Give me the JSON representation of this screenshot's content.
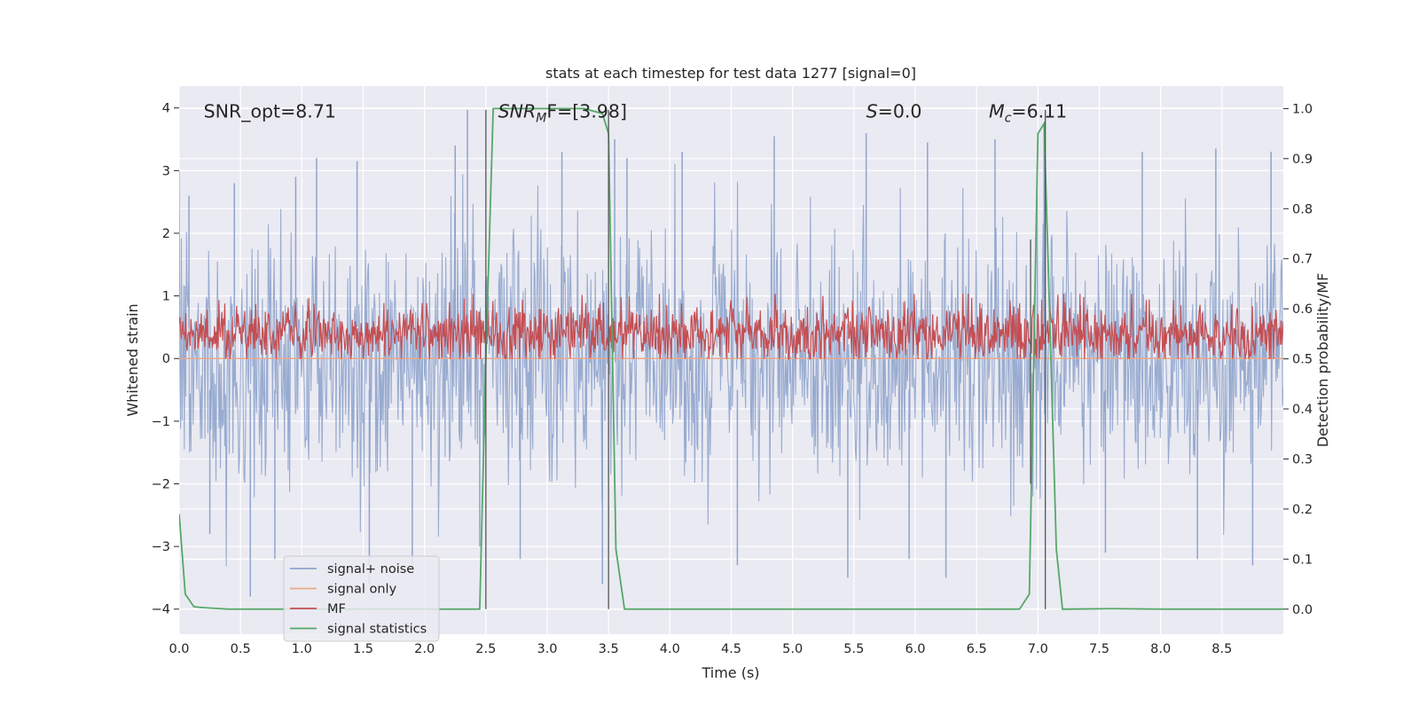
{
  "chart_data": {
    "type": "line",
    "title": "stats at each timestep for test data 1277 [signal=0]",
    "xlabel": "Time (s)",
    "ylabel": "Whitened strain",
    "ylabel_right": "Detection probability/MF",
    "xlim": [
      0.0,
      9.0
    ],
    "ylim": [
      -4.4,
      4.35
    ],
    "ylim_right": [
      -0.05,
      1.045
    ],
    "xticks": [
      "0.0",
      "0.5",
      "1.0",
      "1.5",
      "2.0",
      "2.5",
      "3.0",
      "3.5",
      "4.0",
      "4.5",
      "5.0",
      "5.5",
      "6.0",
      "6.5",
      "7.0",
      "7.5",
      "8.0",
      "8.5"
    ],
    "yticks": [
      "4",
      "3",
      "2",
      "1",
      "0",
      "−1",
      "−2",
      "−3",
      "−4"
    ],
    "yticks_right": [
      "1.0",
      "0.9",
      "0.8",
      "0.7",
      "0.6",
      "0.5",
      "0.4",
      "0.3",
      "0.2",
      "0.1",
      "0.0"
    ],
    "annotations": [
      {
        "name": "snr-opt",
        "text": "SNR_opt=8.71",
        "x": 0.2,
        "y": 3.95
      },
      {
        "name": "snr-mf",
        "text": "SNR_MF=[3.98]",
        "prefix": "SNR",
        "sub": "M",
        "suffix": "F=[3.98]",
        "x": 2.6,
        "y": 3.95
      },
      {
        "name": "s-value",
        "text": "S=0.0",
        "prefix": "S",
        "suffix": "=0.0",
        "x": 5.6,
        "y": 3.95
      },
      {
        "name": "mc-value",
        "text": "Mc=6.11",
        "prefix": "M",
        "sub": "c",
        "suffix": "=6.11",
        "x": 6.6,
        "y": 3.95
      }
    ],
    "legend": {
      "position": "lower-left",
      "entries": [
        "signal+ noise",
        "signal only",
        "MF",
        "signal statistics"
      ]
    },
    "series": [
      {
        "name": "signal+ noise",
        "color": "#8fa4cc",
        "axis": "left",
        "style": "dense noise band between about -1.6 and 1.6 with spikes up to 3.97 and down to -3.8",
        "peaks_upper": [
          [
            0.08,
            2.6
          ],
          [
            0.45,
            2.8
          ],
          [
            0.95,
            2.9
          ],
          [
            1.12,
            3.2
          ],
          [
            1.45,
            3.15
          ],
          [
            2.25,
            3.4
          ],
          [
            2.35,
            3.97
          ],
          [
            3.12,
            3.3
          ],
          [
            3.55,
            3.5
          ],
          [
            3.65,
            3.2
          ],
          [
            4.1,
            3.3
          ],
          [
            4.85,
            3.55
          ],
          [
            5.6,
            3.6
          ],
          [
            6.1,
            3.45
          ],
          [
            6.65,
            3.5
          ],
          [
            7.05,
            3.6
          ],
          [
            7.85,
            3.3
          ],
          [
            8.45,
            3.35
          ],
          [
            8.9,
            3.3
          ]
        ],
        "peaks_lower": [
          [
            0.25,
            -2.8
          ],
          [
            0.58,
            -3.8
          ],
          [
            0.78,
            -3.2
          ],
          [
            1.55,
            -3.6
          ],
          [
            1.9,
            -3.3
          ],
          [
            2.45,
            -3.0
          ],
          [
            2.78,
            -3.2
          ],
          [
            3.45,
            -3.6
          ],
          [
            4.55,
            -3.3
          ],
          [
            5.45,
            -3.5
          ],
          [
            5.95,
            -3.2
          ],
          [
            6.25,
            -3.5
          ],
          [
            7.55,
            -3.1
          ],
          [
            8.3,
            -3.2
          ],
          [
            8.75,
            -3.3
          ]
        ]
      },
      {
        "name": "signal only",
        "color": "#e8a98d",
        "axis": "left",
        "x": [
          0.0,
          9.0
        ],
        "y": [
          0.0,
          0.0
        ]
      },
      {
        "name": "MF",
        "color": "#c44e52",
        "axis": "right",
        "style": "noisy band around 0.55 ranging about 0.5 to 0.63",
        "mean": 0.55,
        "range": [
          0.5,
          0.63
        ]
      },
      {
        "name": "signal statistics",
        "color": "#55a868",
        "axis": "right",
        "x": [
          0.0,
          0.05,
          0.12,
          0.2,
          0.4,
          1.0,
          2.0,
          2.45,
          2.5,
          2.56,
          2.7,
          3.0,
          3.3,
          3.45,
          3.5,
          3.56,
          3.63,
          4.0,
          5.0,
          6.0,
          6.85,
          6.93,
          7.0,
          7.05,
          7.1,
          7.15,
          7.2,
          7.6,
          8.0,
          9.0
        ],
        "y": [
          0.19,
          0.03,
          0.005,
          0.003,
          0.0,
          0.0,
          0.0,
          0.0,
          0.5,
          1.0,
          1.0,
          1.0,
          1.0,
          0.99,
          0.95,
          0.12,
          0.0,
          0.0,
          0.0,
          0.0,
          0.0,
          0.03,
          0.95,
          0.97,
          0.55,
          0.12,
          0.0,
          0.001,
          0.0,
          0.0
        ]
      }
    ],
    "vertical_markers": [
      {
        "x": 2.5,
        "y_top": 3.97,
        "y_bottom": -4.0
      },
      {
        "x": 3.5,
        "y_top": 3.97,
        "y_bottom": -4.0
      },
      {
        "x": 6.94,
        "y_top": 1.9,
        "y_bottom": -2.0
      },
      {
        "x": 7.06,
        "y_top": 3.97,
        "y_bottom": -4.0
      }
    ]
  }
}
